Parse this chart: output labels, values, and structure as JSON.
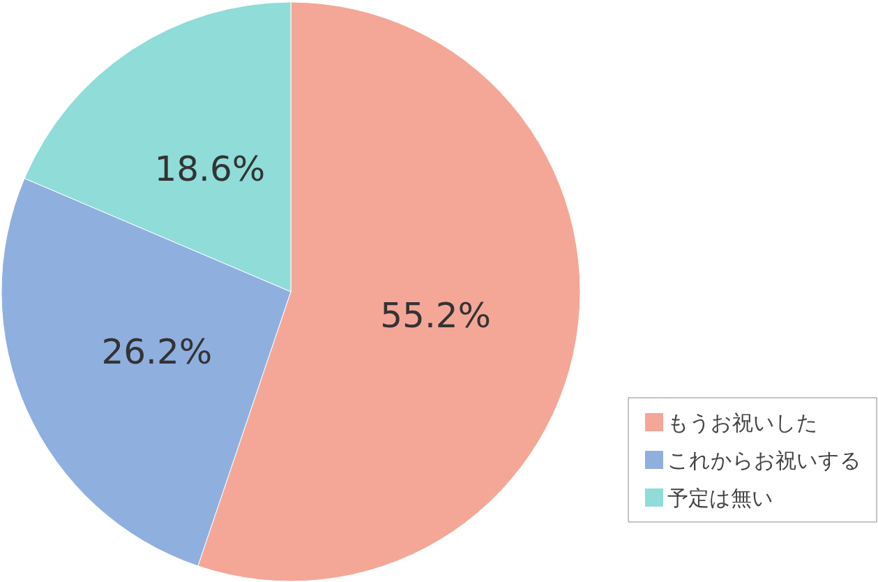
{
  "chart_data": {
    "type": "pie",
    "categories": [
      "もうお祝いした",
      "これからお祝いする",
      "予定は無い"
    ],
    "values": [
      55.2,
      26.2,
      18.6
    ],
    "colors": [
      "#f4a797",
      "#8fafdf",
      "#8fdcd9"
    ],
    "value_labels": [
      "55.2%",
      "26.2%",
      "18.6%"
    ],
    "legend": "bottom right"
  }
}
